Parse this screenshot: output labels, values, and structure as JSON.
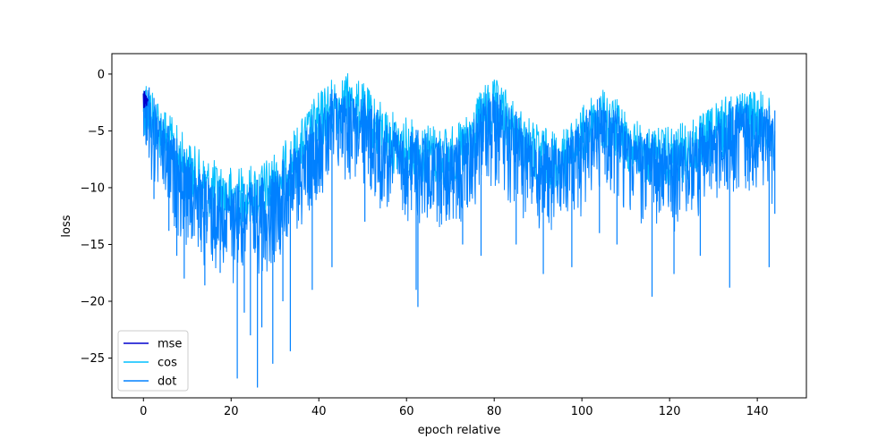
{
  "chart_data": {
    "type": "line",
    "xlabel": "epoch relative",
    "ylabel": "loss",
    "xlim": [
      -7.2,
      151.2
    ],
    "ylim": [
      -28.5,
      1.8
    ],
    "x_ticks": [
      0,
      20,
      40,
      60,
      80,
      100,
      120,
      140
    ],
    "y_ticks": [
      0,
      -5,
      -10,
      -15,
      -20,
      -25
    ],
    "grid": false,
    "legend_position": "lower-left",
    "series": [
      {
        "name": "mse",
        "color": "#0000cd",
        "x": [
          0.0,
          0.1,
          0.2,
          0.3,
          0.4,
          0.5,
          0.6,
          0.7,
          0.8,
          0.9,
          1.0
        ],
        "y": [
          -1.7,
          -3.0,
          -1.5,
          -2.9,
          -1.8,
          -2.6,
          -1.9,
          -2.8,
          -2.1,
          -2.4,
          -2.2
        ]
      },
      {
        "name": "cos",
        "color": "#00bfff",
        "x": [
          0,
          2,
          4,
          6,
          8,
          10,
          12,
          14,
          16,
          18,
          20,
          22,
          24,
          26,
          28,
          30,
          32,
          34,
          36,
          38,
          40,
          42,
          44,
          46,
          48,
          50,
          52,
          54,
          56,
          58,
          60,
          62,
          64,
          66,
          68,
          70,
          72,
          74,
          76,
          78,
          80,
          82,
          84,
          86,
          88,
          90,
          92,
          94,
          96,
          98,
          100,
          102,
          104,
          106,
          108,
          110,
          112,
          114,
          116,
          118,
          120,
          122,
          124,
          126,
          128,
          130,
          132,
          134,
          136,
          138,
          140,
          142,
          144
        ],
        "y": [
          0.3,
          -1.0,
          -2.2,
          -3.5,
          -4.6,
          -5.6,
          -6.4,
          -7.0,
          -7.5,
          -7.9,
          -8.1,
          -8.1,
          -8.0,
          -7.8,
          -7.4,
          -6.8,
          -6.0,
          -5.0,
          -3.9,
          -2.6,
          -1.5,
          -0.6,
          0.0,
          0.2,
          -0.1,
          -0.7,
          -1.5,
          -2.3,
          -3.0,
          -3.5,
          -3.8,
          -4.0,
          -4.1,
          -4.3,
          -4.4,
          -4.5,
          -4.3,
          -3.5,
          -2.0,
          -0.8,
          -0.4,
          -0.9,
          -2.0,
          -3.0,
          -3.8,
          -4.4,
          -4.7,
          -4.8,
          -4.6,
          -4.0,
          -2.9,
          -1.7,
          -1.3,
          -1.5,
          -2.2,
          -3.0,
          -3.7,
          -4.2,
          -4.5,
          -4.6,
          -4.6,
          -4.4,
          -4.1,
          -3.7,
          -3.3,
          -2.7,
          -2.0,
          -1.5,
          -1.2,
          -1.1,
          -1.3,
          -1.8,
          -2.4
        ]
      },
      {
        "name": "dot",
        "color": "#0080ff",
        "x": [
          0,
          2,
          4,
          6,
          8,
          10,
          12,
          14,
          16,
          18,
          20,
          22,
          24,
          26,
          28,
          30,
          32,
          34,
          36,
          38,
          40,
          42,
          44,
          46,
          48,
          50,
          52,
          54,
          56,
          58,
          60,
          62,
          64,
          66,
          68,
          70,
          72,
          74,
          76,
          78,
          80,
          82,
          84,
          86,
          88,
          90,
          92,
          94,
          96,
          98,
          100,
          102,
          104,
          106,
          108,
          110,
          112,
          114,
          116,
          118,
          120,
          122,
          124,
          126,
          128,
          130,
          132,
          134,
          136,
          138,
          140,
          142,
          144
        ],
        "y": [
          0.0,
          -1.8,
          -3.3,
          -4.7,
          -5.9,
          -7.0,
          -7.8,
          -8.5,
          -9.0,
          -9.4,
          -9.6,
          -9.7,
          -9.6,
          -9.3,
          -8.9,
          -8.3,
          -7.4,
          -6.4,
          -5.2,
          -3.9,
          -2.7,
          -1.7,
          -1.0,
          -0.8,
          -1.0,
          -1.6,
          -2.4,
          -3.2,
          -3.9,
          -4.4,
          -4.7,
          -4.9,
          -5.0,
          -5.2,
          -5.3,
          -5.4,
          -5.2,
          -4.3,
          -2.8,
          -1.6,
          -1.2,
          -1.7,
          -2.8,
          -3.8,
          -4.6,
          -5.2,
          -5.5,
          -5.6,
          -5.4,
          -4.8,
          -3.7,
          -2.5,
          -2.1,
          -2.3,
          -3.0,
          -3.8,
          -4.5,
          -5.0,
          -5.3,
          -5.4,
          -5.4,
          -5.2,
          -4.9,
          -4.5,
          -4.1,
          -3.5,
          -2.8,
          -2.3,
          -2.0,
          -1.9,
          -2.1,
          -2.6,
          -3.2
        ]
      }
    ],
    "spikes": [
      {
        "x": 1.3,
        "y": -4.0
      },
      {
        "x": 2.4,
        "y": -11.0
      },
      {
        "x": 5.8,
        "y": -13.8
      },
      {
        "x": 7.6,
        "y": -16.0
      },
      {
        "x": 9.3,
        "y": -18.0
      },
      {
        "x": 11.0,
        "y": -14.5
      },
      {
        "x": 14.0,
        "y": -18.6
      },
      {
        "x": 17.5,
        "y": -17.5
      },
      {
        "x": 21.4,
        "y": -26.8
      },
      {
        "x": 23.0,
        "y": -21.0
      },
      {
        "x": 24.4,
        "y": -23.0
      },
      {
        "x": 26.0,
        "y": -27.6
      },
      {
        "x": 27.0,
        "y": -22.3
      },
      {
        "x": 29.5,
        "y": -25.5
      },
      {
        "x": 31.8,
        "y": -20.0
      },
      {
        "x": 33.5,
        "y": -24.4
      },
      {
        "x": 38.5,
        "y": -19.0
      },
      {
        "x": 43.0,
        "y": -17.0
      },
      {
        "x": 50.5,
        "y": -13.0
      },
      {
        "x": 62.2,
        "y": -19.0
      },
      {
        "x": 62.6,
        "y": -20.5
      },
      {
        "x": 72.8,
        "y": -15.0
      },
      {
        "x": 77.0,
        "y": -16.0
      },
      {
        "x": 85.0,
        "y": -15.0
      },
      {
        "x": 91.2,
        "y": -17.6
      },
      {
        "x": 97.7,
        "y": -17.0
      },
      {
        "x": 104.0,
        "y": -14.0
      },
      {
        "x": 108.0,
        "y": -15.0
      },
      {
        "x": 116.0,
        "y": -19.6
      },
      {
        "x": 121.0,
        "y": -17.6
      },
      {
        "x": 127.0,
        "y": -16.0
      },
      {
        "x": 133.7,
        "y": -18.8
      },
      {
        "x": 142.7,
        "y": -17.0
      },
      {
        "x": 144.0,
        "y": -12.3
      }
    ]
  }
}
